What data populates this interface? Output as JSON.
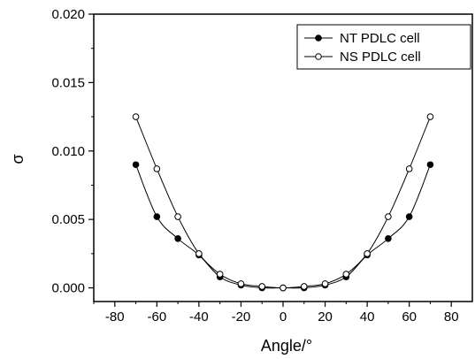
{
  "chart_data": {
    "type": "line",
    "title": "",
    "xlabel": "Angle/°",
    "ylabel": "σ",
    "xlim": [
      -90,
      90
    ],
    "ylim": [
      -0.001,
      0.02
    ],
    "x_ticks": [
      -80,
      -60,
      -40,
      -20,
      0,
      20,
      40,
      60,
      80
    ],
    "x_tick_labels": [
      "-80",
      "-60",
      "-40",
      "-20",
      "0",
      "20",
      "40",
      "60",
      "80"
    ],
    "y_ticks": [
      0.0,
      0.005,
      0.01,
      0.015,
      0.02
    ],
    "y_tick_labels": [
      "0.000",
      "0.005",
      "0.010",
      "0.015",
      "0.020"
    ],
    "grid": false,
    "legend_position": "top-right",
    "series": [
      {
        "name": "NT PDLC cell",
        "marker": "filled-circle",
        "color": "#000000",
        "x": [
          -70,
          -60,
          -50,
          -40,
          -30,
          -20,
          -10,
          0,
          10,
          20,
          30,
          40,
          50,
          60,
          70
        ],
        "y": [
          0.009,
          0.0052,
          0.0036,
          0.0024,
          0.0008,
          0.0002,
          0.0,
          0.0,
          0.0,
          0.0002,
          0.0008,
          0.0024,
          0.0036,
          0.0052,
          0.009
        ]
      },
      {
        "name": "NS PDLC cell",
        "marker": "open-circle",
        "color": "#000000",
        "x": [
          -70,
          -60,
          -50,
          -40,
          -30,
          -20,
          -10,
          0,
          10,
          20,
          30,
          40,
          50,
          60,
          70
        ],
        "y": [
          0.0125,
          0.0087,
          0.0052,
          0.0025,
          0.001,
          0.0003,
          0.0001,
          0.0,
          0.0001,
          0.0003,
          0.001,
          0.0025,
          0.0052,
          0.0087,
          0.0125
        ]
      }
    ]
  }
}
